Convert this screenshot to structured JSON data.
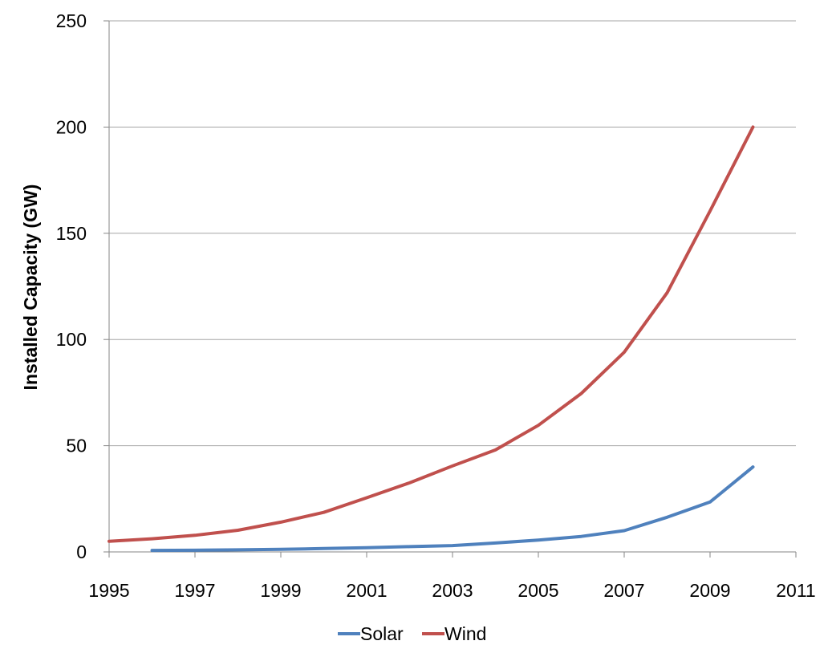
{
  "chart_data": {
    "type": "line",
    "title": "",
    "xlabel": "",
    "ylabel": "Installed Capacity (GW)",
    "xlim": [
      1995,
      2011
    ],
    "ylim": [
      0,
      250
    ],
    "x_ticks": [
      1995,
      1997,
      1999,
      2001,
      2003,
      2005,
      2007,
      2009,
      2011
    ],
    "y_ticks": [
      0,
      50,
      100,
      150,
      200,
      250
    ],
    "grid": "horizontal",
    "legend_position": "bottom",
    "series": [
      {
        "name": "Solar",
        "color": "#4F81BD",
        "x": [
          1996,
          1997,
          1998,
          1999,
          2000,
          2001,
          2002,
          2003,
          2004,
          2005,
          2006,
          2007,
          2008,
          2009,
          2010
        ],
        "values": [
          0.7,
          0.8,
          1.0,
          1.2,
          1.6,
          2.0,
          2.5,
          3.0,
          4.2,
          5.6,
          7.3,
          10.0,
          16.3,
          23.5,
          40.0
        ]
      },
      {
        "name": "Wind",
        "color": "#C0504D",
        "x": [
          1995,
          1996,
          1997,
          1998,
          1999,
          2000,
          2001,
          2002,
          2003,
          2004,
          2005,
          2006,
          2007,
          2008,
          2009,
          2010
        ],
        "values": [
          5,
          6.2,
          7.8,
          10.2,
          14,
          18.6,
          25.5,
          32.5,
          40.5,
          48,
          59.6,
          74.6,
          94,
          122,
          160.5,
          200
        ]
      }
    ]
  }
}
